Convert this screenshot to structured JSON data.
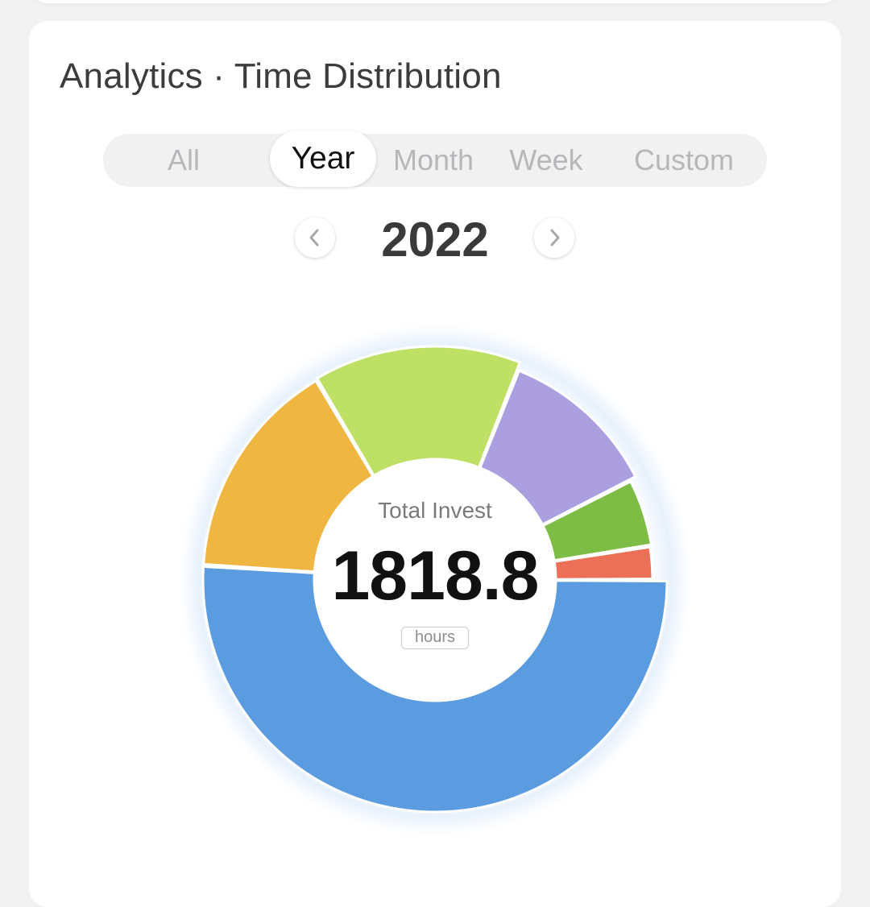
{
  "card": {
    "title": "Analytics · Time Distribution"
  },
  "tabs": [
    {
      "label": "All",
      "active": false
    },
    {
      "label": "Year",
      "active": true
    },
    {
      "label": "Month",
      "active": false
    },
    {
      "label": "Week",
      "active": false
    },
    {
      "label": "Custom",
      "active": false
    }
  ],
  "period": {
    "label": "2022",
    "prev_icon": "chevron-left-icon",
    "next_icon": "chevron-right-icon"
  },
  "summary": {
    "caption": "Total Invest",
    "value": "1818.8",
    "unit": "hours"
  },
  "chart_data": {
    "type": "pie",
    "donut": true,
    "start_angle_deg": 0,
    "direction": "clockwise",
    "slices": [
      {
        "share": 0.51,
        "color": "#5b9be0"
      },
      {
        "share": 0.155,
        "color": "#f0b642"
      },
      {
        "share": 0.145,
        "color": "#bde065"
      },
      {
        "share": 0.115,
        "color": "#ab9fe0"
      },
      {
        "share": 0.05,
        "color": "#7dbd45"
      },
      {
        "share": 0.025,
        "color": "#ec6f57"
      }
    ]
  }
}
